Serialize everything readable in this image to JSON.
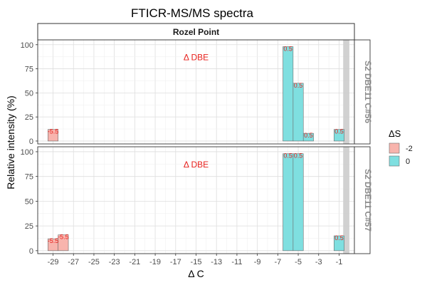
{
  "chart_data": {
    "type": "bar",
    "title": "FTICR-MS/MS spectra",
    "xlabel": "Δ C",
    "ylabel": "Relative intensity (%)",
    "column_strip": "Rozel Point",
    "xlim": [
      -30.5,
      0.5
    ],
    "ylim": [
      -3,
      105
    ],
    "x_ticks": [
      -29,
      -27,
      -25,
      -23,
      -21,
      -19,
      -17,
      -15,
      -13,
      -11,
      -9,
      -7,
      -5,
      -3,
      -1
    ],
    "y_ticks": [
      0,
      25,
      50,
      75,
      100
    ],
    "grid": true,
    "legend": {
      "title": "ΔS",
      "placement": "right",
      "entries": [
        {
          "label": "-2",
          "color": "#F8B4AD"
        },
        {
          "label": "0",
          "color": "#7FDFE0"
        }
      ]
    },
    "bar_stroke_color": "#6b6b6b",
    "reference_band": {
      "x_start": -0.6,
      "x_end": 0,
      "color": "#cccccc"
    },
    "panels": [
      {
        "strip": "S2 DBE11 C#56",
        "annotation": "Δ DBE",
        "bars": [
          {
            "x": -29,
            "y": 12,
            "ds": "-2",
            "label": "-5.5"
          },
          {
            "x": -6,
            "y": 98,
            "ds": "0",
            "label": "0.5"
          },
          {
            "x": -5,
            "y": 60,
            "ds": "0",
            "label": "0.5"
          },
          {
            "x": -4,
            "y": 8,
            "ds": "0",
            "label": "0.5"
          },
          {
            "x": -1,
            "y": 12,
            "ds": "0",
            "label": "0.5"
          }
        ]
      },
      {
        "strip": "S2 DBE11 C#57",
        "annotation": "Δ DBE",
        "bars": [
          {
            "x": -29,
            "y": 12,
            "ds": "-2",
            "label": "-5.5"
          },
          {
            "x": -28,
            "y": 16,
            "ds": "-2",
            "label": "-5.5"
          },
          {
            "x": -6,
            "y": 98,
            "ds": "0",
            "label": "0.5"
          },
          {
            "x": -5,
            "y": 98,
            "ds": "0",
            "label": "0.5"
          },
          {
            "x": -1,
            "y": 15,
            "ds": "0",
            "label": "0.5"
          }
        ]
      }
    ],
    "colors": {
      "annotation": "#e8211d",
      "strip_background": "#ffffff",
      "strip_border": "#333333",
      "panel_border": "#333333",
      "grid_major": "#dedede",
      "grid_minor": "#eeeeee",
      "axis_text": "#4d4d4d",
      "strip_text_row": "#8c8c8c"
    }
  }
}
